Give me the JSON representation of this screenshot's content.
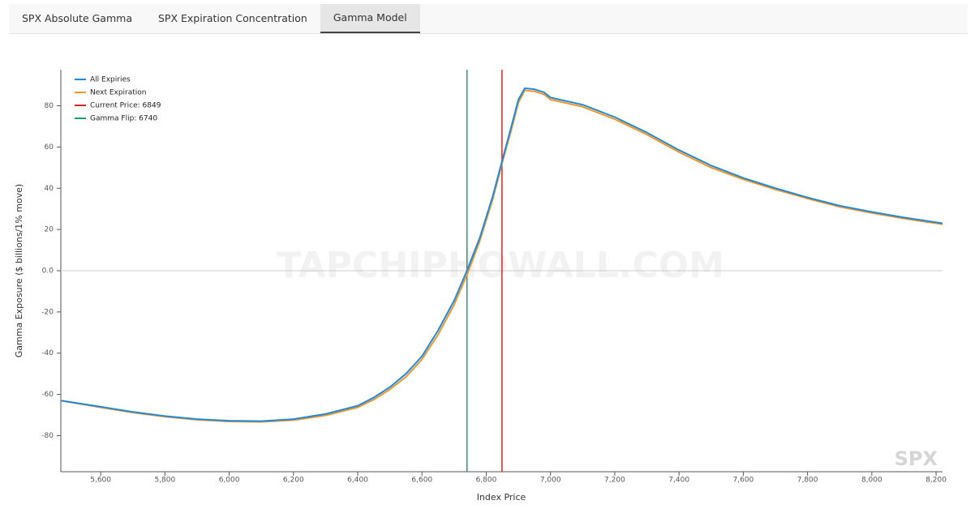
{
  "tabs": [
    {
      "label": "SPX Absolute Gamma",
      "active": false
    },
    {
      "label": "SPX Expiration Concentration",
      "active": false
    },
    {
      "label": "Gamma Model",
      "active": true
    }
  ],
  "chart_data": {
    "type": "line",
    "x_label": "Index Price",
    "y_label": "Gamma Exposure ($ billions/1% move)",
    "watermark": "TAPCHIPHOWALL.COM",
    "corner_label": "SPX",
    "x": [
      5476,
      5600,
      5700,
      5800,
      5900,
      6000,
      6100,
      6200,
      6300,
      6400,
      6450,
      6500,
      6550,
      6600,
      6650,
      6700,
      6740,
      6780,
      6820,
      6849,
      6880,
      6900,
      6920,
      6950,
      6980,
      7000,
      7100,
      7200,
      7300,
      7400,
      7500,
      7600,
      7700,
      7800,
      7900,
      8000,
      8100,
      8220
    ],
    "series": [
      {
        "name": "All Expiries",
        "color": "#2389d6",
        "values": [
          -63,
          -66,
          -68.5,
          -70.5,
          -72,
          -72.8,
          -73,
          -72,
          -69.5,
          -65.5,
          -61.5,
          -56.5,
          -50,
          -41.5,
          -29,
          -14.5,
          0,
          16,
          36,
          53,
          71,
          83,
          88.5,
          88,
          86.5,
          84,
          80.5,
          74.5,
          67,
          58.5,
          51,
          45,
          40,
          35.5,
          31.5,
          28.5,
          25.8,
          23
        ]
      },
      {
        "name": "Next Expiration",
        "color": "#f0962a",
        "values": [
          -63,
          -66.3,
          -68.8,
          -70.8,
          -72.3,
          -73.1,
          -73.3,
          -72.5,
          -70.2,
          -66.3,
          -62.5,
          -57.6,
          -51.5,
          -43,
          -31,
          -16.5,
          -2,
          14.5,
          34.5,
          52,
          69.5,
          81.5,
          87.5,
          87,
          85.5,
          83,
          79.5,
          73.5,
          66,
          57.5,
          50,
          44.3,
          39.4,
          35,
          31,
          28,
          25.3,
          22.5
        ]
      }
    ],
    "vlines": [
      {
        "name": "Current Price: 6849",
        "value": 6849,
        "color": "#d62728"
      },
      {
        "name": "Gamma Flip: 6740",
        "value": 6740,
        "color": "#1a9c6e"
      }
    ],
    "xlim": [
      5476,
      8220
    ],
    "ylim": [
      -97.5,
      97.5
    ],
    "xticks": [
      {
        "value": 5600,
        "label": "5,600"
      },
      {
        "value": 5800,
        "label": "5,800"
      },
      {
        "value": 6000,
        "label": "6,000"
      },
      {
        "value": 6200,
        "label": "6,200"
      },
      {
        "value": 6400,
        "label": "6,400"
      },
      {
        "value": 6600,
        "label": "6,600"
      },
      {
        "value": 6800,
        "label": "6,800"
      },
      {
        "value": 7000,
        "label": "7,000"
      },
      {
        "value": 7200,
        "label": "7,200"
      },
      {
        "value": 7400,
        "label": "7,400"
      },
      {
        "value": 7600,
        "label": "7,600"
      },
      {
        "value": 7800,
        "label": "7,800"
      },
      {
        "value": 8000,
        "label": "8,000"
      },
      {
        "value": 8200,
        "label": "8,200"
      }
    ],
    "yticks": [
      -80,
      -60,
      -40,
      -20,
      {
        "value": 0,
        "label": "0.0"
      },
      20,
      40,
      60,
      80
    ],
    "zero_line": true,
    "legend": "top-left"
  }
}
